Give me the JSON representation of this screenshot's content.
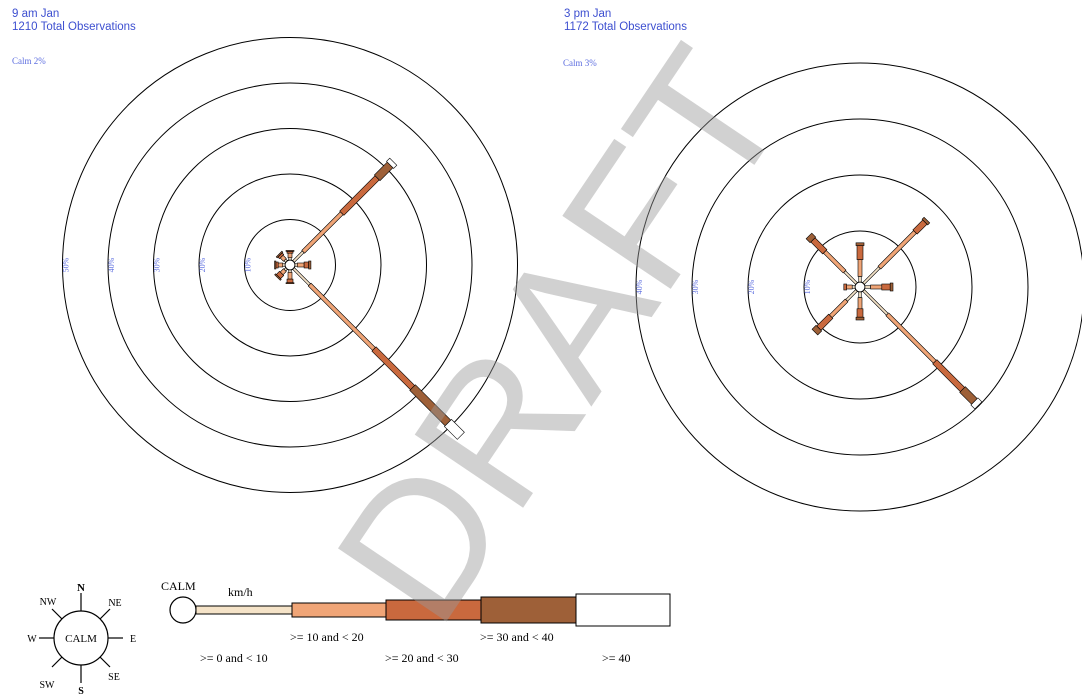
{
  "watermark": "DRAFT",
  "chart_data": [
    {
      "type": "windrose",
      "title": "9 am Jan",
      "subtitle": "1210 Total Observations",
      "calm_label": "Calm 2%",
      "ring_labels": [
        "10%",
        "20%",
        "30%",
        "40%",
        "50%"
      ],
      "speed_units": "km/h",
      "speed_bins": [
        ">= 0 and < 10",
        ">= 10 and < 20",
        ">= 20 and < 30",
        ">= 30 and < 40",
        ">= 40"
      ],
      "directions": [
        "N",
        "NE",
        "E",
        "SE",
        "S",
        "SW",
        "W",
        "NW"
      ],
      "frequencies_pct": {
        "N": [
          0.5,
          1.0,
          0.4,
          0.2,
          0.0
        ],
        "NE": [
          3.0,
          12.0,
          11.0,
          4.0,
          1.0
        ],
        "E": [
          0.5,
          1.5,
          1.0,
          0.5,
          0.0
        ],
        "SE": [
          5.0,
          20.0,
          12.0,
          11.0,
          4.0
        ],
        "S": [
          0.5,
          1.5,
          0.8,
          0.2,
          0.0
        ],
        "SW": [
          0.5,
          1.0,
          1.0,
          0.3,
          0.0
        ],
        "W": [
          0.5,
          1.0,
          0.5,
          0.3,
          0.0
        ],
        "NW": [
          0.5,
          1.0,
          0.5,
          0.3,
          0.0
        ]
      }
    },
    {
      "type": "windrose",
      "title": "3 pm Jan",
      "subtitle": "1172 Total Observations",
      "calm_label": "Calm 3%",
      "ring_labels": [
        "10%",
        "20%",
        "30%",
        "40%"
      ],
      "speed_units": "km/h",
      "speed_bins": [
        ">= 0 and < 10",
        ">= 10 and < 20",
        ">= 20 and < 30",
        ">= 30 and < 40",
        ">= 40"
      ],
      "directions": [
        "N",
        "NE",
        "E",
        "SE",
        "S",
        "SW",
        "W",
        "NW"
      ],
      "frequencies_pct": {
        "N": [
          1.0,
          3.0,
          2.5,
          0.5,
          0.0
        ],
        "NE": [
          4.0,
          9.0,
          2.5,
          0.5,
          0.0
        ],
        "E": [
          1.0,
          2.0,
          1.5,
          0.5,
          0.0
        ],
        "SE": [
          6.0,
          12.0,
          7.0,
          3.0,
          1.0
        ],
        "S": [
          1.0,
          2.0,
          1.5,
          0.5,
          0.0
        ],
        "SW": [
          2.5,
          4.0,
          3.0,
          1.0,
          0.0
        ],
        "W": [
          0.5,
          1.0,
          0.5,
          0.0,
          0.0
        ],
        "NW": [
          3.0,
          5.0,
          3.0,
          1.0,
          0.0
        ]
      }
    }
  ],
  "legend": {
    "compass_center": "CALM",
    "compass_labels": [
      "N",
      "NE",
      "E",
      "SE",
      "S",
      "SW",
      "W",
      "NW"
    ],
    "calm_label": "CALM",
    "units": "km/h",
    "bin_labels": [
      ">= 0 and < 10",
      ">= 10 and < 20",
      ">= 20 and < 30",
      ">= 30 and < 40",
      ">= 40"
    ],
    "colors": [
      "#f5e3c8",
      "#f0a577",
      "#c9693e",
      "#9e6038",
      "#ffffff"
    ]
  }
}
